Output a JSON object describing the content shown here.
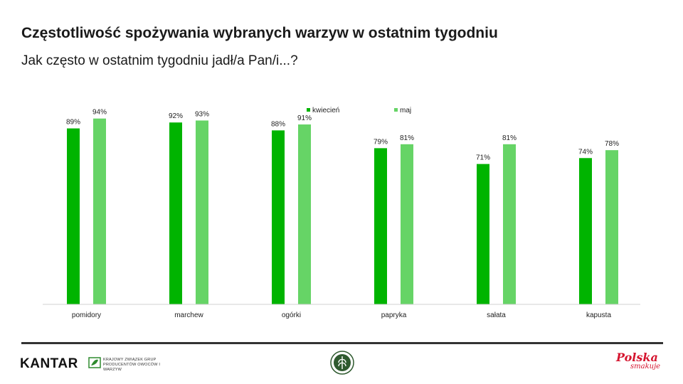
{
  "header": {
    "title": "Częstotliwość spożywania wybranych warzyw w ostatnim tygodniu",
    "subtitle": "Jak często w ostatnim tygodniu jadł/a Pan/i...?"
  },
  "chart_data": {
    "type": "bar",
    "categories": [
      "pomidory",
      "marchew",
      "ogórki",
      "papryka",
      "sałata",
      "kapusta"
    ],
    "series": [
      {
        "name": "kwiecień",
        "values": [
          89,
          92,
          88,
          79,
          71,
          74
        ],
        "color": "#00b400"
      },
      {
        "name": "maj",
        "values": [
          94,
          93,
          91,
          81,
          81,
          78
        ],
        "color": "#66d466"
      }
    ],
    "value_suffix": "%",
    "ylim": [
      0,
      100
    ],
    "legend_position": "top-center",
    "grid": false
  },
  "footer": {
    "kantar_logo": "KANTAR",
    "kzgp_logo": "Krajowy Związek Grup Producentów Owoców i Warzyw",
    "polska_logo": "Polska",
    "polska_tagline": "smakuje",
    "emblem_icon": "emblem-icon"
  }
}
